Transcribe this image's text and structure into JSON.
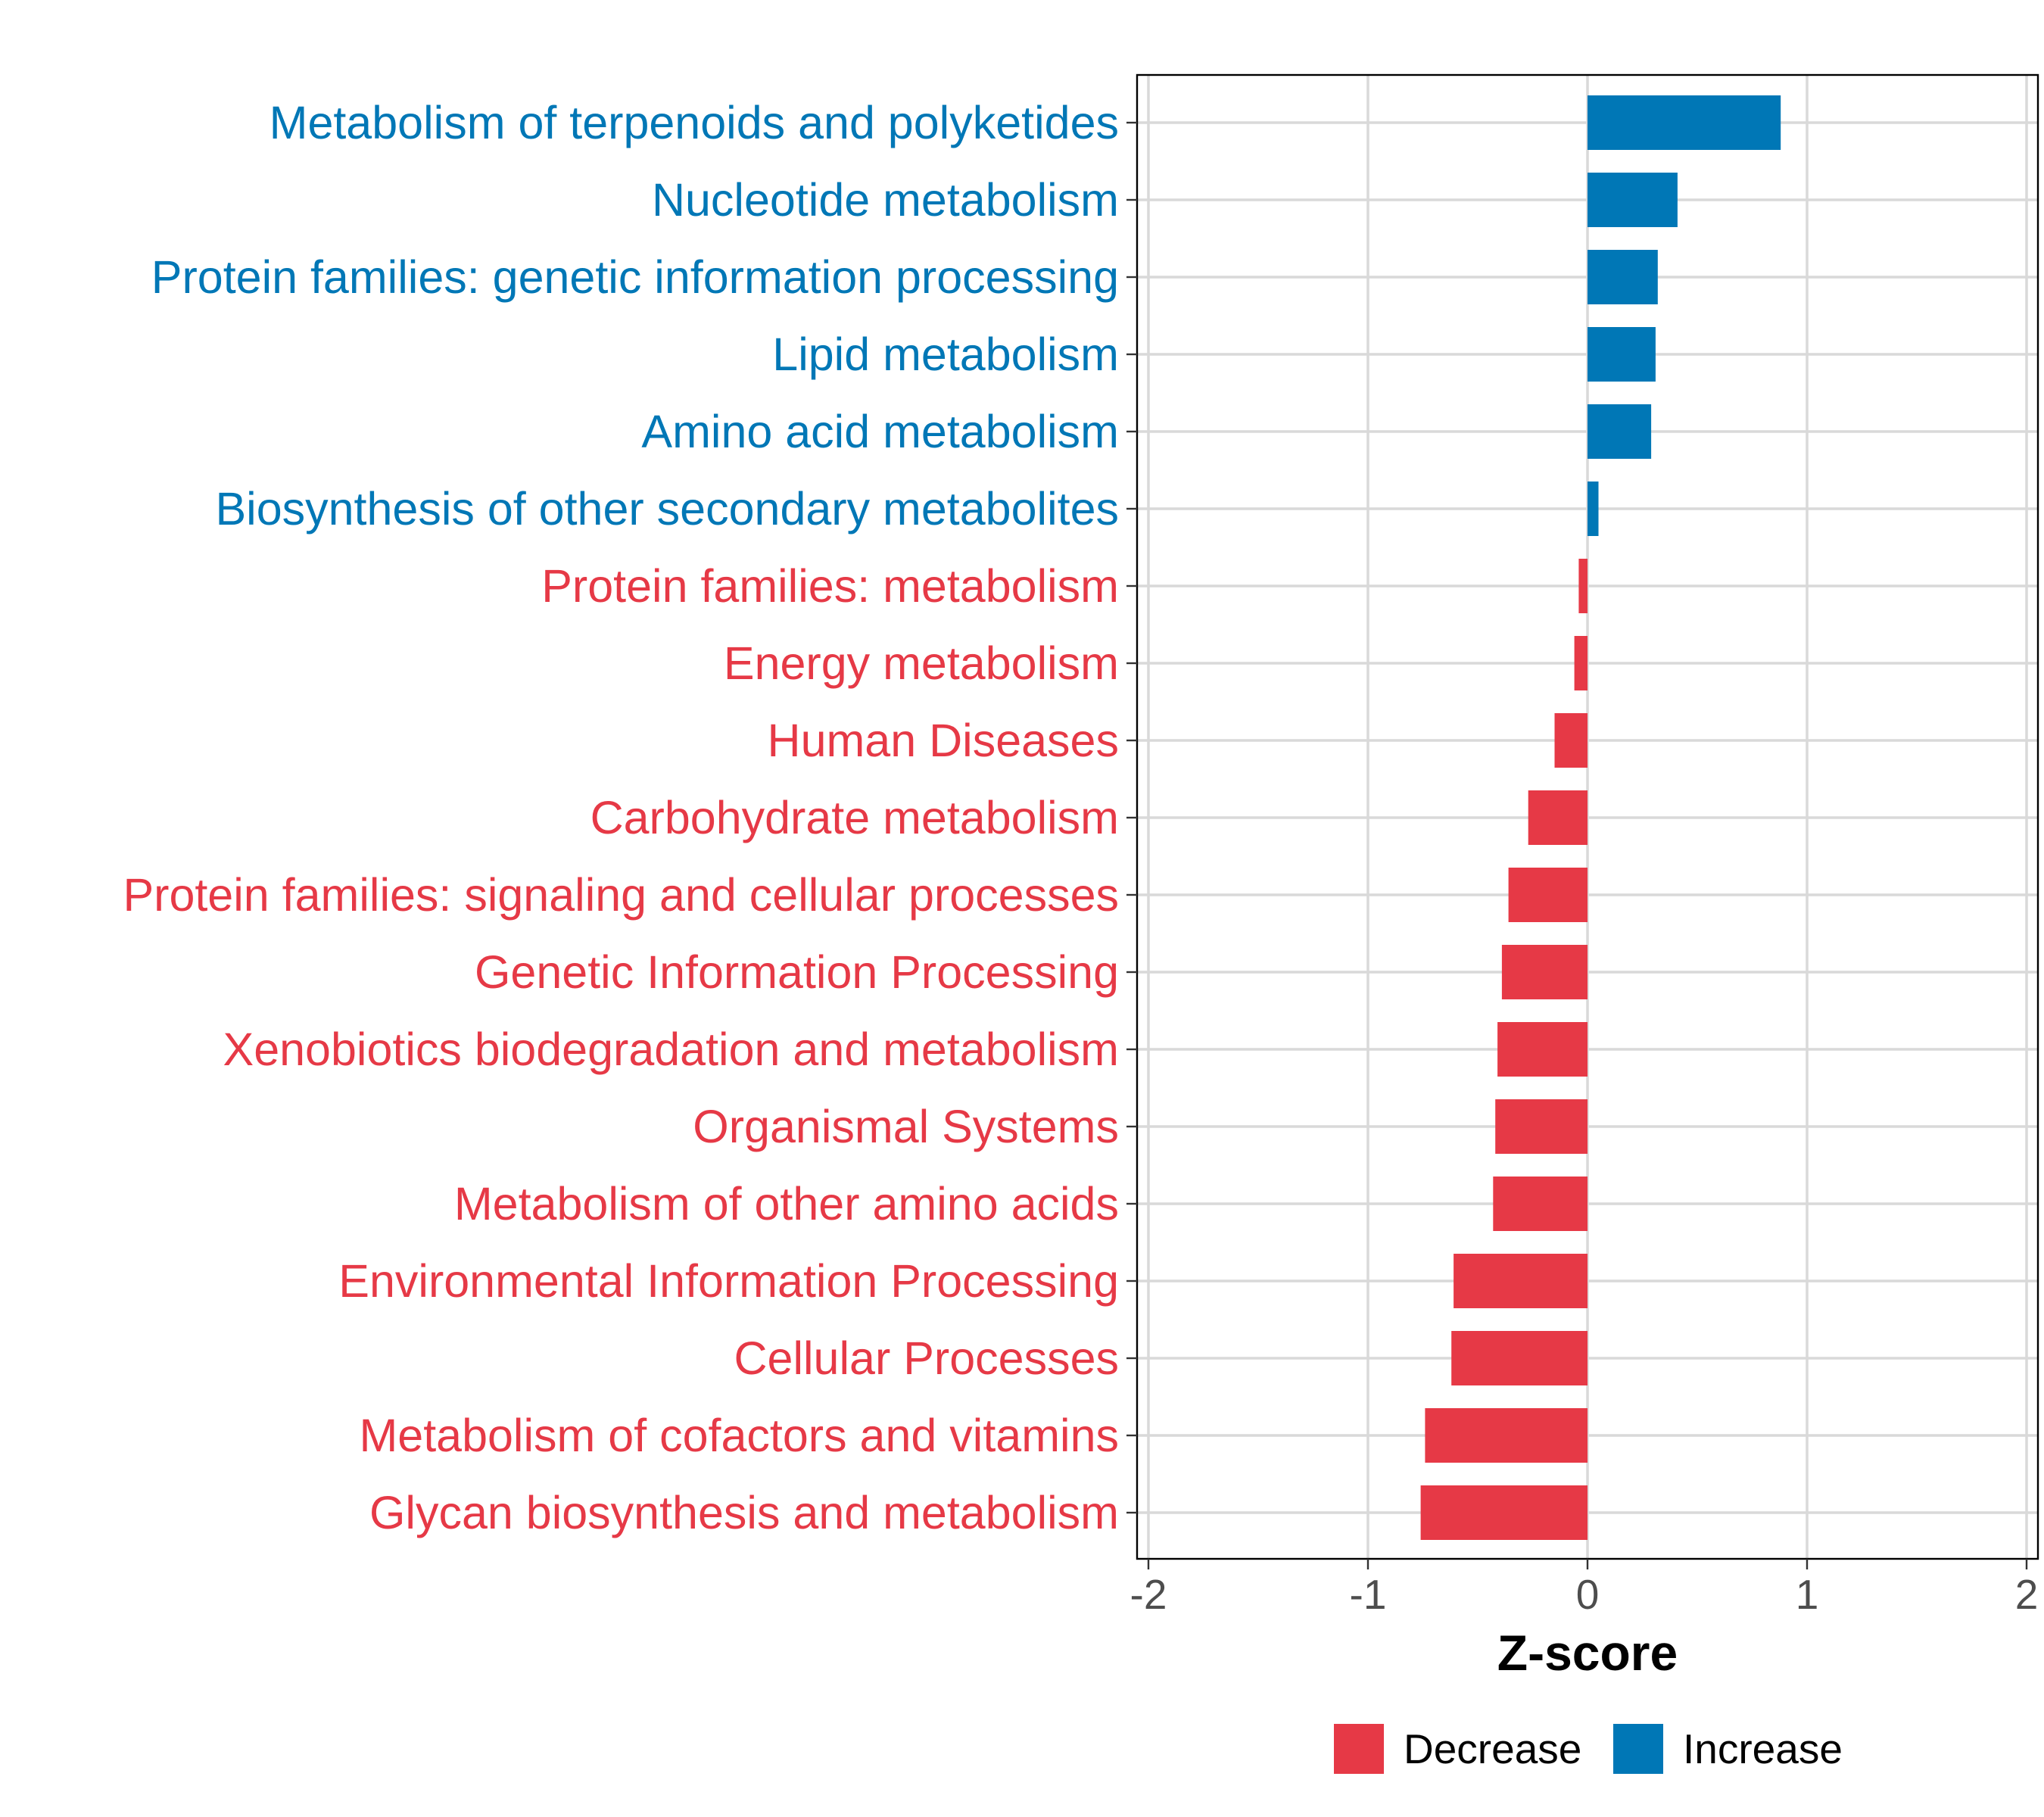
{
  "chart_data": {
    "type": "bar",
    "orientation": "horizontal",
    "xlabel": "Z-score",
    "xlim": [
      -2,
      2
    ],
    "xticks": [
      -2,
      -1,
      0,
      1,
      2
    ],
    "xtick_labels": [
      "-2",
      "-1",
      "0",
      "1",
      "2"
    ],
    "grid": true,
    "legend_position": "bottom",
    "colors": {
      "Decrease": "#e63946",
      "Increase": "#0077b6"
    },
    "legend": [
      {
        "name": "Decrease",
        "color": "#e63946"
      },
      {
        "name": "Increase",
        "color": "#0077b6"
      }
    ],
    "categories": [
      "Metabolism of terpenoids and polyketides",
      "Nucleotide metabolism",
      "Protein families: genetic information processing",
      "Lipid metabolism",
      "Amino acid metabolism",
      "Biosynthesis of other secondary metabolites",
      "Protein families: metabolism",
      "Energy metabolism",
      "Human Diseases",
      "Carbohydrate metabolism",
      "Protein families: signaling and cellular processes",
      "Genetic Information Processing",
      "Xenobiotics biodegradation and metabolism",
      "Organismal Systems",
      "Metabolism of other amino acids",
      "Environmental Information Processing",
      "Cellular Processes",
      "Metabolism of cofactors and vitamins",
      "Glycan biosynthesis and metabolism"
    ],
    "values": [
      0.88,
      0.41,
      0.32,
      0.31,
      0.29,
      0.05,
      -0.04,
      -0.06,
      -0.15,
      -0.27,
      -0.36,
      -0.39,
      -0.41,
      -0.42,
      -0.43,
      -0.61,
      -0.62,
      -0.74,
      -0.76
    ],
    "groups": [
      "Increase",
      "Increase",
      "Increase",
      "Increase",
      "Increase",
      "Increase",
      "Decrease",
      "Decrease",
      "Decrease",
      "Decrease",
      "Decrease",
      "Decrease",
      "Decrease",
      "Decrease",
      "Decrease",
      "Decrease",
      "Decrease",
      "Decrease",
      "Decrease"
    ]
  }
}
